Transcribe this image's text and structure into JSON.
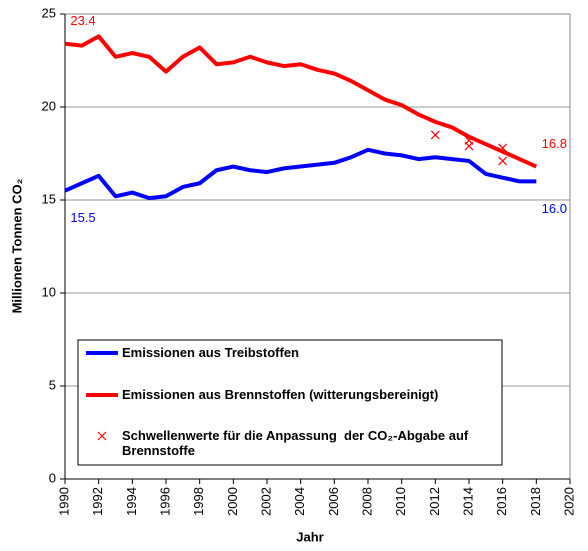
{
  "chart_data": {
    "type": "line",
    "x_label": "Jahr",
    "y_label": "Millionen Tonnen CO₂",
    "x": [
      1990,
      1991,
      1992,
      1993,
      1994,
      1995,
      1996,
      1997,
      1998,
      1999,
      2000,
      2001,
      2002,
      2003,
      2004,
      2005,
      2006,
      2007,
      2008,
      2009,
      2010,
      2011,
      2012,
      2013,
      2014,
      2015,
      2016,
      2017,
      2018
    ],
    "xlim": [
      1990,
      2020
    ],
    "xticks": [
      1990,
      1992,
      1994,
      1996,
      1998,
      2000,
      2002,
      2004,
      2006,
      2008,
      2010,
      2012,
      2014,
      2016,
      2018,
      2020
    ],
    "ylim": [
      0,
      25
    ],
    "yticks": [
      0,
      5,
      10,
      15,
      20,
      25
    ],
    "grid": true,
    "series": [
      {
        "name": "Emissionen aus Treibstoffen",
        "type": "line",
        "color": "#0000ff",
        "values": [
          15.5,
          15.9,
          16.3,
          15.2,
          15.4,
          15.1,
          15.2,
          15.7,
          15.9,
          16.6,
          16.8,
          16.6,
          16.5,
          16.7,
          16.8,
          16.9,
          17.0,
          17.3,
          17.7,
          17.5,
          17.4,
          17.2,
          17.3,
          17.2,
          17.1,
          16.4,
          16.2,
          16.0,
          16.0
        ],
        "value_labels": [
          "15.5",
          null,
          null,
          null,
          null,
          null,
          null,
          null,
          null,
          null,
          null,
          null,
          null,
          null,
          null,
          null,
          null,
          null,
          null,
          null,
          null,
          null,
          null,
          null,
          null,
          null,
          null,
          null,
          "16.0"
        ]
      },
      {
        "name": "Emissionen aus Brennstoffen (witterungsbereinigt)",
        "type": "line",
        "color": "#ff0000",
        "values": [
          23.4,
          23.3,
          23.8,
          22.7,
          22.9,
          22.7,
          21.9,
          22.7,
          23.2,
          22.3,
          22.4,
          22.7,
          22.4,
          22.2,
          22.3,
          22.0,
          21.8,
          21.4,
          20.9,
          20.4,
          20.1,
          19.6,
          19.2,
          18.9,
          18.4,
          18.0,
          17.6,
          17.2,
          16.8
        ],
        "value_labels": [
          "23.4",
          null,
          null,
          null,
          null,
          null,
          null,
          null,
          null,
          null,
          null,
          null,
          null,
          null,
          null,
          null,
          null,
          null,
          null,
          null,
          null,
          null,
          null,
          null,
          null,
          null,
          null,
          null,
          "16.8"
        ]
      },
      {
        "name": "Schwellenwerte für die Anpassung  der CO₂-Abgabe auf Brennstoffe",
        "type": "scatter",
        "color": "#ff0000",
        "x": [
          2012,
          2014,
          2014,
          2016,
          2016
        ],
        "values": [
          18.5,
          18.2,
          17.9,
          17.8,
          17.1
        ]
      }
    ]
  }
}
